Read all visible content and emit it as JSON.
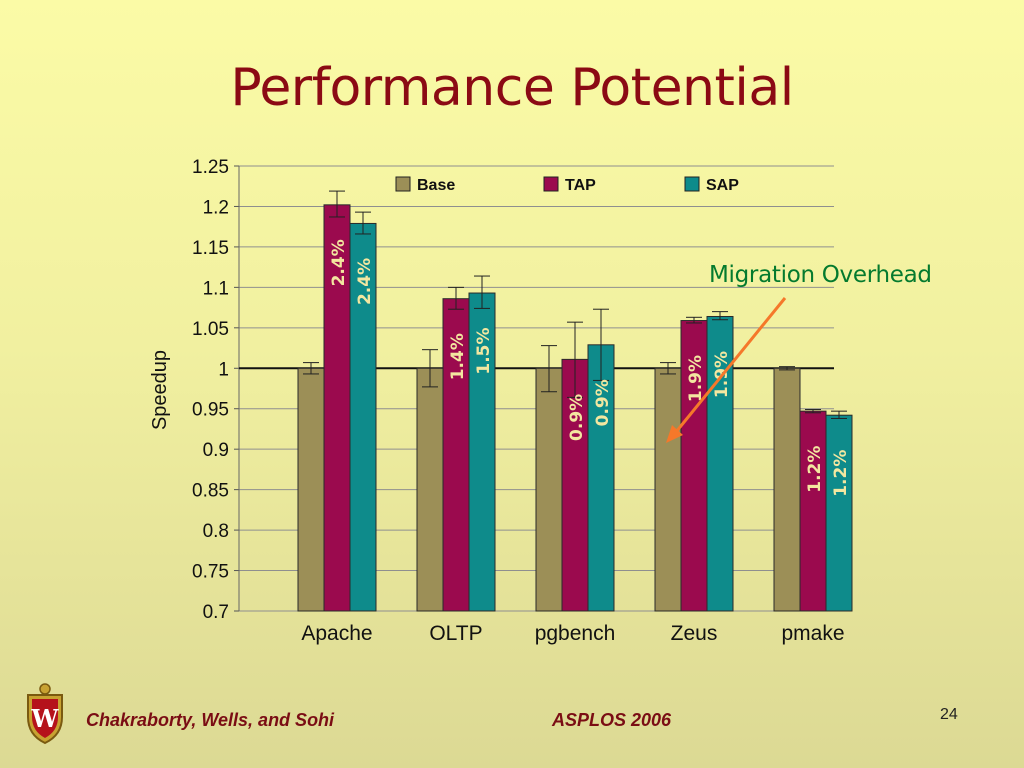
{
  "slide": {
    "title": "Performance Potential",
    "callout": "Migration Overhead",
    "footer_authors": "Chakraborty, Wells, and Sohi",
    "footer_conference": "ASPLOS 2006",
    "page_number": "24"
  },
  "colors": {
    "base": "#9c8f57",
    "tap": "#9b0a4e",
    "sap": "#0e8b8b",
    "title": "#8b0a14",
    "callout_text": "#047a2e",
    "arrow": "#f5782a",
    "footer": "#7a0d14"
  },
  "chart_data": {
    "type": "bar",
    "xlabel": "",
    "ylabel": "Speedup",
    "ylim": [
      0.7,
      1.25
    ],
    "yticks": [
      "1.25",
      "1.2",
      "1.15",
      "1.1",
      "1.05",
      "1",
      "0.95",
      "0.9",
      "0.85",
      "0.8",
      "0.75",
      "0.7"
    ],
    "categories": [
      "Apache",
      "OLTP",
      "pgbench",
      "Zeus",
      "pmake"
    ],
    "grid": true,
    "legend_position": "top",
    "reference_line": 1.0,
    "series": [
      {
        "name": "Base",
        "values": [
          1.0,
          1.0,
          1.0,
          1.0,
          1.0
        ],
        "error_low": [
          0.993,
          0.977,
          0.971,
          0.993,
          0.998
        ],
        "error_high": [
          1.007,
          1.023,
          1.028,
          1.007,
          1.002
        ],
        "labels": [
          "",
          "",
          "",
          "",
          ""
        ]
      },
      {
        "name": "TAP",
        "values": [
          1.202,
          1.086,
          1.011,
          1.059,
          0.947
        ],
        "error_low": [
          1.187,
          1.073,
          0.964,
          1.056,
          0.945
        ],
        "error_high": [
          1.219,
          1.1,
          1.057,
          1.063,
          0.949
        ],
        "labels": [
          "2.4%",
          "1.4%",
          "0.9%",
          "1.9%",
          "1.2%"
        ]
      },
      {
        "name": "SAP",
        "values": [
          1.179,
          1.093,
          1.029,
          1.064,
          0.942
        ],
        "error_low": [
          1.166,
          1.074,
          0.985,
          1.06,
          0.938
        ],
        "error_high": [
          1.193,
          1.114,
          1.073,
          1.07,
          0.947
        ],
        "labels": [
          "2.4%",
          "1.5%",
          "0.9%",
          "1.9%",
          "1.2%"
        ]
      }
    ]
  }
}
